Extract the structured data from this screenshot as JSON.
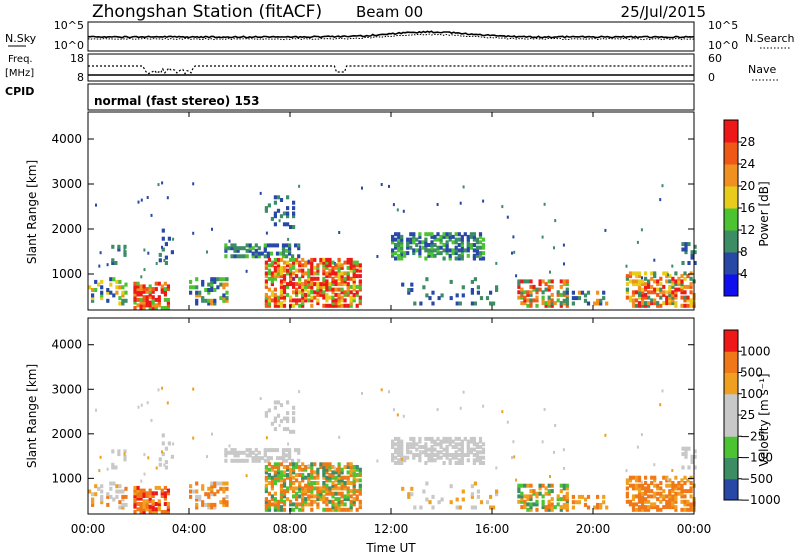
{
  "header": {
    "title": "Zhongshan Station (fitACF)",
    "beam": "Beam 00",
    "date": "25/Jul/2015"
  },
  "strips": {
    "nsky_label": "N.Sky",
    "nsearch_label": "N.Search",
    "noise_ticks": [
      "10^5",
      "10^0"
    ],
    "freq_label_1": "Freq.",
    "freq_label_2": "[MHz]",
    "freq_ticks": [
      "18",
      "8"
    ],
    "nave_label": "Nave",
    "nave_ticks": [
      "60",
      "0"
    ],
    "cpid_label": "CPID",
    "cpid_text": "normal (fast stereo) 153"
  },
  "chart_data": [
    {
      "type": "heatmap",
      "name": "power",
      "ylabel": "Slant Range [km]",
      "y_ticks": [
        "1000",
        "2000",
        "3000",
        "4000"
      ],
      "ylim": [
        200,
        4600
      ],
      "colorbar_label": "Power [dB]",
      "colorbar_ticks": [
        "4",
        "8",
        "12",
        "16",
        "20",
        "24",
        "28"
      ],
      "colorbar_colors": [
        "#1010ee",
        "#2848a8",
        "#3c8c64",
        "#4cc432",
        "#e8cc1c",
        "#f09020",
        "#f05818",
        "#ee1818"
      ]
    },
    {
      "type": "heatmap",
      "name": "velocity",
      "ylabel": "Slant Range [km]",
      "y_ticks": [
        "1000",
        "2000",
        "3000",
        "4000"
      ],
      "ylim": [
        200,
        4600
      ],
      "colorbar_label": "Velocity [m s⁻¹]",
      "colorbar_ticks": [
        "1000",
        "500",
        "100",
        "25",
        "−25",
        "−100",
        "−500",
        "−1000"
      ],
      "colorbar_colors": [
        "#2848a8",
        "#3c8c64",
        "#4cc432",
        "#c8c8c8",
        "#c8c8c8",
        "#f0a020",
        "#f07818",
        "#ee1818"
      ]
    }
  ],
  "xaxis": {
    "label": "Time UT",
    "ticks": [
      "00:00",
      "04:00",
      "08:00",
      "12:00",
      "16:00",
      "20:00",
      "00:00"
    ]
  }
}
